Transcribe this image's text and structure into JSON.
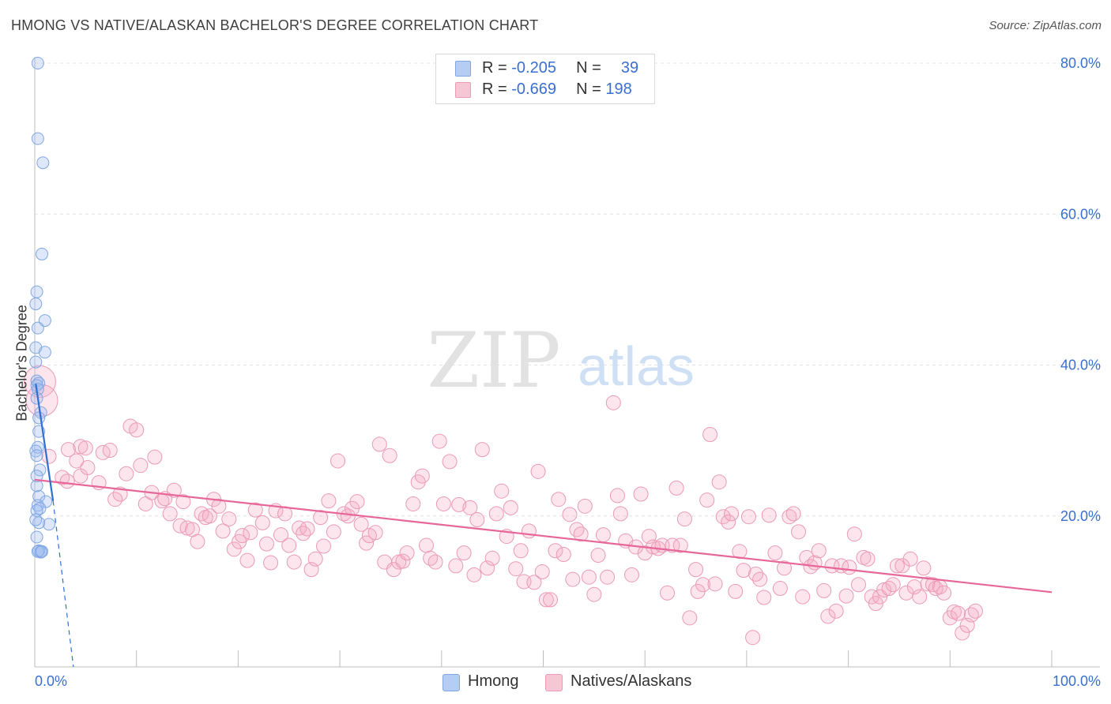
{
  "header": {
    "title": "HMONG VS NATIVE/ALASKAN BACHELOR'S DEGREE CORRELATION CHART",
    "source": "Source: ZipAtlas.com"
  },
  "watermark": {
    "zip": "ZIP",
    "atlas": "atlas"
  },
  "legend": {
    "rows": [
      {
        "r_label": "R =",
        "r_value": "-0.205",
        "n_label": "N =",
        "n_value": "39",
        "color": "#a9c4f0"
      },
      {
        "r_label": "R =",
        "r_value": "-0.669",
        "n_label": "N =",
        "n_value": "198",
        "color": "#f5b7c9"
      }
    ]
  },
  "bottom_legend": [
    {
      "label": "Hmong",
      "color": "#b5cdf2"
    },
    {
      "label": "Natives/Alaskans",
      "color": "#f7c6d4"
    }
  ],
  "colors": {
    "hmong_fill": "rgba(160,190,240,0.35)",
    "hmong_stroke": "#7fa6e3",
    "hmong_line": "#2f6fd1",
    "native_fill": "rgba(245,170,195,0.30)",
    "native_stroke": "#eb9ab5",
    "native_line": "#e7679a",
    "tick_label": "#3a6fd0",
    "grid": "#e3e3e3"
  },
  "chart_data": {
    "type": "scatter",
    "title": "HMONG VS NATIVE/ALASKAN BACHELOR'S DEGREE CORRELATION CHART",
    "xlabel": "",
    "ylabel": "Bachelor's Degree",
    "xlim": [
      0,
      100
    ],
    "ylim": [
      0,
      80
    ],
    "x_tick_labels": [
      "0.0%",
      "100.0%"
    ],
    "y_ticks": [
      20,
      40,
      60,
      80
    ],
    "y_tick_labels": [
      "20.0%",
      "40.0%",
      "60.0%",
      "80.0%"
    ],
    "grid": true,
    "legend_position": "top-center",
    "series": [
      {
        "name": "Hmong",
        "R": -0.205,
        "N": 39,
        "trend": {
          "x0": 0.1,
          "y0": 37.5,
          "x1": 1.8,
          "y1": 22.0,
          "dashed_to": [
            3.8,
            0.0
          ]
        },
        "points": [
          [
            0.3,
            80.0
          ],
          [
            0.3,
            70.0
          ],
          [
            0.8,
            66.8
          ],
          [
            0.7,
            54.7
          ],
          [
            0.2,
            49.7
          ],
          [
            0.1,
            48.1
          ],
          [
            1.0,
            45.9
          ],
          [
            0.3,
            44.9
          ],
          [
            0.1,
            42.3
          ],
          [
            1.0,
            41.7
          ],
          [
            0.1,
            40.4
          ],
          [
            0.2,
            37.9
          ],
          [
            0.4,
            37.6
          ],
          [
            0.2,
            37.3
          ],
          [
            0.3,
            36.8
          ],
          [
            0.2,
            35.6
          ],
          [
            0.6,
            33.7
          ],
          [
            0.4,
            33.0
          ],
          [
            0.4,
            31.2
          ],
          [
            0.3,
            29.1
          ],
          [
            0.1,
            28.6
          ],
          [
            0.2,
            28.0
          ],
          [
            0.5,
            26.1
          ],
          [
            0.2,
            25.3
          ],
          [
            0.4,
            22.6
          ],
          [
            1.1,
            21.9
          ],
          [
            0.3,
            21.4
          ],
          [
            0.5,
            21.0
          ],
          [
            0.2,
            20.7
          ],
          [
            1.4,
            18.9
          ],
          [
            0.4,
            19.1
          ],
          [
            0.2,
            17.2
          ],
          [
            0.6,
            15.3
          ],
          [
            0.4,
            15.4
          ],
          [
            0.6,
            15.2
          ],
          [
            0.3,
            15.3
          ],
          [
            0.7,
            15.3
          ],
          [
            0.1,
            19.5
          ],
          [
            0.2,
            24.0
          ]
        ]
      },
      {
        "name": "Natives/Alaskans",
        "R": -0.669,
        "N": 198,
        "trend": {
          "x0": 0.0,
          "y0": 24.8,
          "x1": 100.0,
          "y1": 9.9
        },
        "big_points": [
          [
            0.5,
            37.8
          ],
          [
            0.7,
            35.3
          ]
        ],
        "points": [
          [
            1.4,
            27.9
          ],
          [
            2.7,
            25.1
          ],
          [
            3.2,
            24.6
          ],
          [
            3.3,
            28.8
          ],
          [
            4.1,
            27.3
          ],
          [
            4.5,
            25.3
          ],
          [
            4.5,
            29.2
          ],
          [
            5.0,
            29.0
          ],
          [
            5.2,
            26.4
          ],
          [
            6.7,
            28.4
          ],
          [
            6.3,
            24.4
          ],
          [
            7.4,
            28.7
          ],
          [
            7.9,
            22.2
          ],
          [
            8.4,
            22.9
          ],
          [
            9.0,
            25.6
          ],
          [
            9.4,
            31.9
          ],
          [
            10.0,
            31.4
          ],
          [
            10.4,
            26.7
          ],
          [
            10.9,
            21.6
          ],
          [
            11.5,
            23.1
          ],
          [
            11.8,
            27.8
          ],
          [
            12.5,
            22.0
          ],
          [
            12.8,
            22.3
          ],
          [
            13.3,
            20.3
          ],
          [
            13.7,
            23.4
          ],
          [
            14.3,
            18.7
          ],
          [
            14.6,
            21.9
          ],
          [
            15.0,
            18.4
          ],
          [
            15.5,
            18.2
          ],
          [
            16.0,
            16.6
          ],
          [
            16.4,
            20.3
          ],
          [
            16.8,
            19.8
          ],
          [
            17.2,
            20.0
          ],
          [
            17.6,
            22.2
          ],
          [
            18.1,
            21.3
          ],
          [
            18.5,
            18.0
          ],
          [
            19.1,
            19.6
          ],
          [
            19.6,
            15.6
          ],
          [
            20.1,
            16.6
          ],
          [
            20.4,
            17.4
          ],
          [
            20.9,
            14.1
          ],
          [
            21.2,
            17.8
          ],
          [
            21.7,
            20.8
          ],
          [
            22.4,
            19.1
          ],
          [
            22.8,
            16.3
          ],
          [
            23.2,
            13.8
          ],
          [
            23.7,
            20.7
          ],
          [
            24.2,
            17.5
          ],
          [
            24.6,
            20.3
          ],
          [
            25.0,
            16.1
          ],
          [
            25.5,
            13.9
          ],
          [
            26.0,
            18.4
          ],
          [
            26.4,
            17.7
          ],
          [
            26.8,
            18.3
          ],
          [
            27.2,
            12.9
          ],
          [
            27.6,
            14.3
          ],
          [
            28.1,
            19.8
          ],
          [
            28.4,
            16.0
          ],
          [
            28.9,
            22.0
          ],
          [
            29.4,
            17.9
          ],
          [
            29.8,
            27.3
          ],
          [
            30.4,
            20.3
          ],
          [
            30.8,
            20.0
          ],
          [
            31.2,
            21.0
          ],
          [
            31.7,
            21.9
          ],
          [
            32.1,
            18.9
          ],
          [
            32.6,
            16.4
          ],
          [
            32.9,
            17.4
          ],
          [
            33.5,
            17.8
          ],
          [
            33.9,
            29.5
          ],
          [
            34.4,
            13.9
          ],
          [
            34.9,
            28.0
          ],
          [
            35.3,
            12.9
          ],
          [
            35.8,
            13.9
          ],
          [
            36.2,
            14.0
          ],
          [
            36.6,
            15.1
          ],
          [
            37.2,
            21.6
          ],
          [
            37.7,
            24.5
          ],
          [
            38.1,
            25.3
          ],
          [
            38.5,
            16.1
          ],
          [
            38.9,
            14.4
          ],
          [
            39.4,
            13.9
          ],
          [
            39.8,
            29.9
          ],
          [
            40.2,
            21.6
          ],
          [
            40.8,
            27.2
          ],
          [
            41.4,
            13.4
          ],
          [
            41.7,
            21.5
          ],
          [
            42.2,
            15.1
          ],
          [
            42.8,
            21.1
          ],
          [
            43.2,
            12.2
          ],
          [
            43.5,
            19.5
          ],
          [
            44.0,
            28.8
          ],
          [
            44.5,
            13.1
          ],
          [
            45.0,
            14.4
          ],
          [
            45.4,
            20.3
          ],
          [
            45.9,
            23.3
          ],
          [
            46.4,
            17.3
          ],
          [
            46.8,
            21.1
          ],
          [
            47.3,
            13.0
          ],
          [
            47.8,
            15.4
          ],
          [
            48.1,
            11.3
          ],
          [
            48.6,
            18.0
          ],
          [
            49.1,
            11.2
          ],
          [
            49.5,
            25.9
          ],
          [
            49.9,
            12.6
          ],
          [
            50.3,
            8.9
          ],
          [
            50.7,
            8.9
          ],
          [
            51.2,
            15.4
          ],
          [
            51.5,
            22.2
          ],
          [
            52.0,
            14.9
          ],
          [
            52.6,
            20.2
          ],
          [
            52.9,
            11.6
          ],
          [
            53.3,
            18.2
          ],
          [
            53.7,
            17.6
          ],
          [
            54.1,
            21.3
          ],
          [
            54.5,
            11.9
          ],
          [
            55.0,
            9.6
          ],
          [
            55.4,
            14.8
          ],
          [
            55.9,
            17.5
          ],
          [
            56.3,
            11.9
          ],
          [
            56.9,
            35.0
          ],
          [
            57.3,
            22.7
          ],
          [
            57.6,
            20.3
          ],
          [
            58.1,
            16.7
          ],
          [
            58.7,
            12.2
          ],
          [
            59.1,
            15.9
          ],
          [
            59.6,
            22.9
          ],
          [
            60.0,
            15.1
          ],
          [
            60.4,
            17.3
          ],
          [
            60.8,
            15.9
          ],
          [
            61.3,
            15.7
          ],
          [
            61.7,
            16.1
          ],
          [
            62.2,
            9.8
          ],
          [
            62.7,
            16.1
          ],
          [
            63.1,
            23.7
          ],
          [
            63.5,
            16.1
          ],
          [
            63.9,
            19.6
          ],
          [
            64.4,
            6.5
          ],
          [
            65.0,
            12.9
          ],
          [
            65.2,
            10.0
          ],
          [
            65.7,
            10.9
          ],
          [
            66.1,
            22.1
          ],
          [
            66.4,
            30.8
          ],
          [
            66.9,
            11.0
          ],
          [
            67.3,
            24.5
          ],
          [
            67.7,
            19.9
          ],
          [
            68.2,
            19.2
          ],
          [
            68.5,
            20.3
          ],
          [
            68.9,
            10.0
          ],
          [
            69.3,
            15.3
          ],
          [
            69.7,
            12.8
          ],
          [
            70.2,
            19.9
          ],
          [
            70.6,
            3.9
          ],
          [
            70.9,
            12.3
          ],
          [
            71.3,
            11.6
          ],
          [
            71.7,
            9.2
          ],
          [
            72.2,
            20.1
          ],
          [
            72.8,
            15.1
          ],
          [
            73.3,
            10.4
          ],
          [
            73.7,
            13.1
          ],
          [
            74.2,
            19.9
          ],
          [
            74.6,
            20.3
          ],
          [
            75.1,
            17.9
          ],
          [
            75.5,
            9.3
          ],
          [
            75.9,
            14.5
          ],
          [
            76.3,
            13.3
          ],
          [
            76.7,
            13.8
          ],
          [
            77.1,
            15.4
          ],
          [
            77.6,
            10.1
          ],
          [
            78.0,
            6.7
          ],
          [
            78.4,
            13.4
          ],
          [
            78.8,
            7.4
          ],
          [
            79.3,
            13.4
          ],
          [
            79.8,
            9.4
          ],
          [
            80.1,
            13.2
          ],
          [
            80.6,
            17.6
          ],
          [
            81.0,
            10.9
          ],
          [
            81.5,
            14.5
          ],
          [
            81.9,
            14.3
          ],
          [
            82.3,
            9.3
          ],
          [
            82.7,
            8.4
          ],
          [
            83.1,
            9.3
          ],
          [
            83.5,
            10.2
          ],
          [
            84.0,
            10.4
          ],
          [
            84.4,
            10.9
          ],
          [
            84.8,
            13.4
          ],
          [
            85.3,
            13.4
          ],
          [
            85.7,
            9.8
          ],
          [
            86.1,
            14.3
          ],
          [
            86.5,
            10.6
          ],
          [
            87.0,
            9.3
          ],
          [
            87.4,
            13.1
          ],
          [
            87.8,
            11.0
          ],
          [
            88.3,
            10.9
          ],
          [
            88.6,
            10.4
          ],
          [
            89.0,
            10.6
          ],
          [
            89.4,
            9.8
          ],
          [
            90.0,
            6.5
          ],
          [
            90.4,
            7.3
          ],
          [
            90.8,
            7.1
          ],
          [
            91.2,
            4.5
          ],
          [
            91.7,
            5.5
          ],
          [
            92.1,
            6.9
          ],
          [
            92.5,
            7.4
          ]
        ]
      }
    ]
  }
}
